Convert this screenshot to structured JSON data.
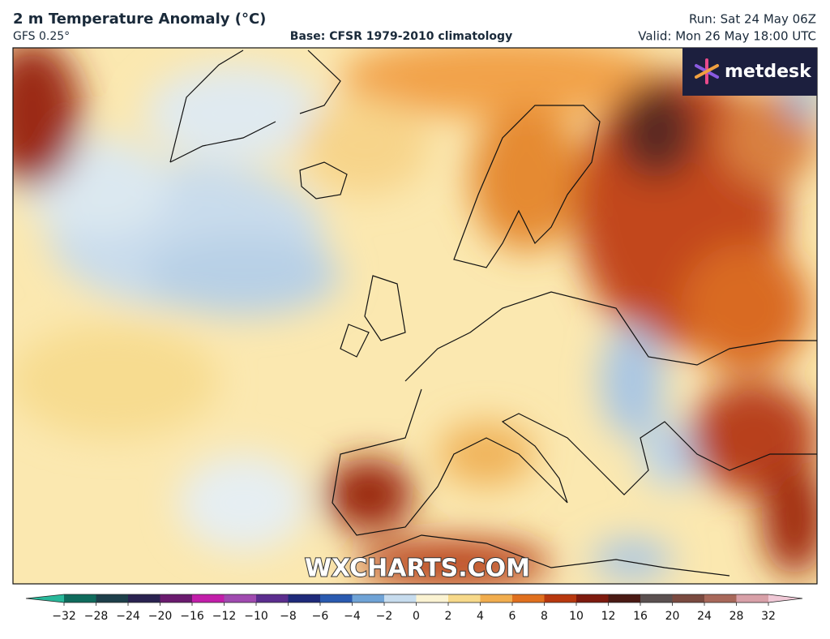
{
  "header": {
    "title": "2 m Temperature Anomaly (°C)",
    "model": "GFS 0.25°",
    "base": "Base: CFSR 1979-2010 climatology",
    "run": "Run: Sat 24 May 06Z",
    "valid": "Valid: Mon 26 May 18:00 UTC"
  },
  "logo": "metdesk",
  "watermark": "WXCHARTS.COM",
  "colorbar": {
    "ticks": [
      {
        "value": -32,
        "label": "−32"
      },
      {
        "value": -28,
        "label": "−28"
      },
      {
        "value": -24,
        "label": "−24"
      },
      {
        "value": -20,
        "label": "−20"
      },
      {
        "value": -16,
        "label": "−16"
      },
      {
        "value": -12,
        "label": "−12"
      },
      {
        "value": -10,
        "label": "−10"
      },
      {
        "value": -8,
        "label": "−8"
      },
      {
        "value": -6,
        "label": "−6"
      },
      {
        "value": -4,
        "label": "−4"
      },
      {
        "value": -2,
        "label": "−2"
      },
      0,
      2,
      4,
      6,
      8,
      10,
      12,
      16,
      20,
      24,
      28,
      32
    ],
    "colors": [
      "#0f6b5c",
      "#1d3f4a",
      "#2a2250",
      "#6a1a6e",
      "#c21eaa",
      "#a04ab0",
      "#5b2d8e",
      "#1e2a7a",
      "#2a5ab0",
      "#6fa3d6",
      "#c7dcee",
      "#fbf3d2",
      "#f7d98a",
      "#f1ad4e",
      "#e0701e",
      "#b8380e",
      "#7e1a0e",
      "#4a1a14",
      "#5a5050",
      "#7a4a40",
      "#a8685a",
      "#d8a0a8"
    ],
    "extend_colors": [
      "#28b89a",
      "#f0c8d6"
    ]
  }
}
